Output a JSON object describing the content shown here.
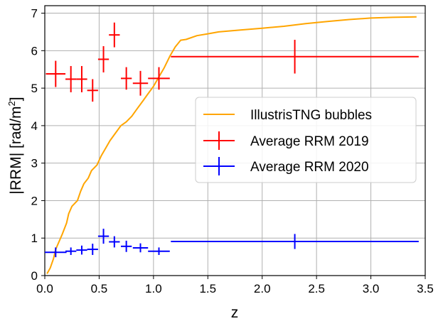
{
  "chart_data": {
    "type": "line",
    "xlabel": "z",
    "ylabel": "|RRM| [rad/m",
    "ylabel_sup": "2",
    "ylabel_end": "]",
    "xlim": [
      0,
      3.5
    ],
    "ylim": [
      0,
      7.2
    ],
    "xticks": [
      "0.0",
      "0.5",
      "1.0",
      "1.5",
      "2.0",
      "2.5",
      "3.0",
      "3.5"
    ],
    "xtick_values": [
      0,
      0.5,
      1.0,
      1.5,
      2.0,
      2.5,
      3.0,
      3.5
    ],
    "yticks": [
      "0",
      "1",
      "2",
      "3",
      "4",
      "5",
      "6",
      "7"
    ],
    "ytick_values": [
      0,
      1,
      2,
      3,
      4,
      5,
      6,
      7
    ],
    "grid": true,
    "legend_position": "center-right",
    "series": [
      {
        "name": "IllustrisTNG bubbles",
        "kind": "line",
        "color": "#FFA500",
        "x": [
          0.02,
          0.05,
          0.08,
          0.1,
          0.13,
          0.16,
          0.2,
          0.22,
          0.25,
          0.3,
          0.33,
          0.36,
          0.4,
          0.43,
          0.48,
          0.52,
          0.56,
          0.6,
          0.65,
          0.7,
          0.75,
          0.8,
          0.85,
          0.9,
          0.95,
          1.0,
          1.05,
          1.1,
          1.15,
          1.2,
          1.25,
          1.3,
          1.4,
          1.5,
          1.6,
          1.8,
          2.0,
          2.2,
          2.4,
          2.6,
          2.8,
          3.0,
          3.2,
          3.42
        ],
        "y": [
          0.05,
          0.2,
          0.45,
          0.7,
          0.9,
          1.1,
          1.4,
          1.65,
          1.85,
          2.0,
          2.25,
          2.45,
          2.6,
          2.8,
          2.95,
          3.2,
          3.4,
          3.6,
          3.8,
          4.0,
          4.1,
          4.25,
          4.45,
          4.65,
          4.85,
          5.05,
          5.3,
          5.55,
          5.85,
          6.1,
          6.28,
          6.3,
          6.4,
          6.45,
          6.5,
          6.55,
          6.6,
          6.65,
          6.72,
          6.78,
          6.83,
          6.87,
          6.89,
          6.9
        ]
      },
      {
        "name": "Average RRM 2019",
        "kind": "errorbar",
        "color": "#FF0000",
        "points": [
          {
            "x": 0.1,
            "y": 5.38,
            "xerr": 0.09,
            "yerr": 0.35
          },
          {
            "x": 0.24,
            "y": 5.24,
            "xerr": 0.05,
            "yerr": 0.35
          },
          {
            "x": 0.34,
            "y": 5.24,
            "xerr": 0.05,
            "yerr": 0.35
          },
          {
            "x": 0.44,
            "y": 4.94,
            "xerr": 0.05,
            "yerr": 0.3
          },
          {
            "x": 0.54,
            "y": 5.77,
            "xerr": 0.05,
            "yerr": 0.35
          },
          {
            "x": 0.64,
            "y": 6.42,
            "xerr": 0.05,
            "yerr": 0.33
          },
          {
            "x": 0.75,
            "y": 5.26,
            "xerr": 0.05,
            "yerr": 0.3
          },
          {
            "x": 0.88,
            "y": 5.13,
            "xerr": 0.07,
            "yerr": 0.33
          },
          {
            "x": 1.05,
            "y": 5.26,
            "xerr": 0.1,
            "yerr": 0.3
          },
          {
            "x": 2.3,
            "y": 5.84,
            "xerr": 1.14,
            "yerr": 0.45
          }
        ]
      },
      {
        "name": "Average RRM 2020",
        "kind": "errorbar",
        "color": "#0000FF",
        "points": [
          {
            "x": 0.1,
            "y": 0.62,
            "xerr": 0.1,
            "yerr": 0.13
          },
          {
            "x": 0.24,
            "y": 0.65,
            "xerr": 0.05,
            "yerr": 0.1
          },
          {
            "x": 0.34,
            "y": 0.68,
            "xerr": 0.05,
            "yerr": 0.12
          },
          {
            "x": 0.44,
            "y": 0.7,
            "xerr": 0.05,
            "yerr": 0.15
          },
          {
            "x": 0.54,
            "y": 1.05,
            "xerr": 0.05,
            "yerr": 0.2
          },
          {
            "x": 0.64,
            "y": 0.9,
            "xerr": 0.05,
            "yerr": 0.15
          },
          {
            "x": 0.75,
            "y": 0.78,
            "xerr": 0.05,
            "yerr": 0.15
          },
          {
            "x": 0.88,
            "y": 0.74,
            "xerr": 0.07,
            "yerr": 0.12
          },
          {
            "x": 1.05,
            "y": 0.65,
            "xerr": 0.1,
            "yerr": 0.1
          },
          {
            "x": 2.3,
            "y": 0.91,
            "xerr": 1.14,
            "yerr": 0.2
          }
        ]
      }
    ]
  }
}
